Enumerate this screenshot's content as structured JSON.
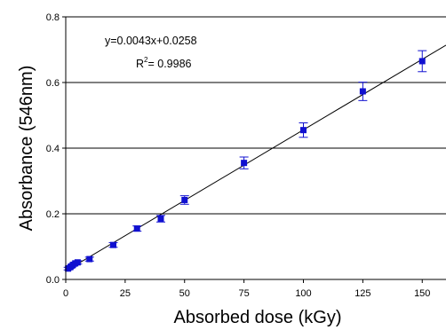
{
  "chart_data": {
    "type": "scatter",
    "title": "",
    "xlabel": "Absorbed dose (kGy)",
    "ylabel": "Absorbance (546nm)",
    "xlim": [
      0,
      160
    ],
    "ylim": [
      0,
      0.8
    ],
    "x_ticks": [
      "0",
      "25",
      "50",
      "75",
      "100",
      "125",
      "150"
    ],
    "y_ticks": [
      "0.0",
      "0.2",
      "0.4",
      "0.6",
      "0.8"
    ],
    "grid": "horizontal",
    "legend": "none",
    "colors": {
      "points": "#1010d0",
      "fit_line": "#000000",
      "grid": "#000000"
    },
    "series": [
      {
        "x": [
          1,
          2,
          3,
          4,
          5,
          10,
          20,
          30,
          40,
          50,
          75,
          100,
          125,
          150
        ],
        "y": [
          0.033,
          0.038,
          0.044,
          0.049,
          0.052,
          0.062,
          0.105,
          0.155,
          0.185,
          0.242,
          0.355,
          0.455,
          0.573,
          0.665
        ],
        "error": [
          0.004,
          0.004,
          0.004,
          0.004,
          0.005,
          0.006,
          0.007,
          0.008,
          0.01,
          0.013,
          0.018,
          0.022,
          0.028,
          0.032
        ]
      }
    ],
    "fit": {
      "slope": 0.0043,
      "intercept": 0.0258,
      "x_range": [
        0,
        160
      ]
    },
    "annotations": {
      "equation": "y=0.0043x+0.0258",
      "r2_prefix": "R",
      "r2_sup": "2",
      "r2_value": "= 0.9986"
    }
  }
}
